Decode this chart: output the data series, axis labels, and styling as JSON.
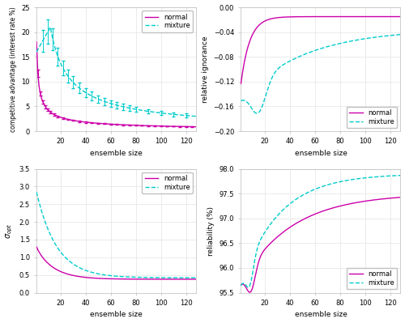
{
  "fig_width": 5.0,
  "fig_height": 3.99,
  "dpi": 100,
  "bg_color": "#ffffff",
  "axes_bg": "#ffffff",
  "grid_color": "#e8e8e8",
  "spine_color": "#bbbbbb",
  "normal_color": "#cc00aa",
  "mixture_color": "#00cccc",
  "normal_label": "normal",
  "mixture_label": "mixture",
  "panel_tl": {
    "ylabel": "competitive advantage (interest rate %)",
    "xlabel": "ensemble size",
    "ylim": [
      0,
      25
    ],
    "yticks": [
      0,
      5,
      10,
      15,
      20,
      25
    ]
  },
  "panel_tr": {
    "ylabel": "relative ignorance",
    "xlabel": "ensemble size",
    "ylim": [
      -0.2,
      0
    ],
    "yticks": [
      -0.2,
      -0.16,
      -0.12,
      -0.08,
      -0.04,
      0
    ]
  },
  "panel_bl": {
    "ylabel": "sigma_opt",
    "xlabel": "ensemble size",
    "ylim": [
      0,
      3.5
    ],
    "yticks": [
      0,
      0.5,
      1.0,
      1.5,
      2.0,
      2.5,
      3.0,
      3.5
    ]
  },
  "panel_br": {
    "ylabel": "reliability (%)",
    "xlabel": "ensemble size",
    "ylim": [
      95.5,
      98.0
    ],
    "yticks": [
      95.5,
      96.0,
      96.5,
      97.0,
      97.5,
      98.0
    ]
  }
}
